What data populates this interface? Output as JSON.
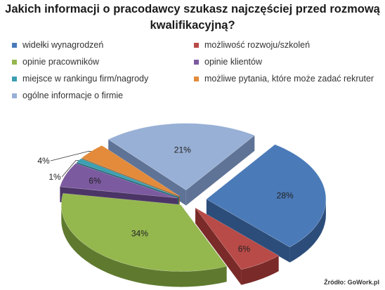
{
  "title": "Jakich informacji o pracodawcy szukasz najczęściej przed rozmową kwalifikacyjną?",
  "source": "Źródło: GoWork.pl",
  "chart_data": {
    "type": "pie",
    "title": "Jakich informacji o pracodawcy szukasz najczęściej przed rozmową kwalifikacyjną?",
    "legend_position": "top",
    "categories": [
      "widełki wynagrodzeń",
      "możliwość rozwoju/szkoleń",
      "opinie pracowników",
      "opinie klientów",
      "miejsce w rankingu firm/nagrody",
      "możliwe pytania, które może zadać rekruter",
      "ogólne informacje o firmie"
    ],
    "values": [
      28,
      6,
      34,
      6,
      1,
      4,
      21
    ],
    "labels": [
      "28%",
      "6%",
      "34%",
      "6%",
      "1%",
      "4%",
      "21%"
    ],
    "colors": [
      "#4a7ab8",
      "#b84a47",
      "#94b74e",
      "#7c5aa0",
      "#3d9fb2",
      "#e38b3a",
      "#98b0d6"
    ],
    "side_colors": [
      "#2c4d7a",
      "#7a2a28",
      "#5f7a2e",
      "#4b3566",
      "#1f6573",
      "#9a5a1f",
      "#5f7396"
    ]
  }
}
